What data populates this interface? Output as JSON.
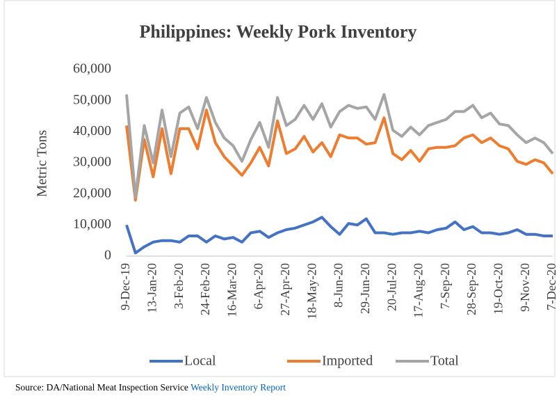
{
  "chart_data": {
    "type": "line",
    "title": "Philippines: Weekly Pork Inventory",
    "y_label": "Metric Tons",
    "categories": [
      "9-Dec-19",
      null,
      null,
      "13-Jan-20",
      null,
      null,
      "3-Feb-20",
      null,
      null,
      "24-Feb-20",
      null,
      null,
      "16-Mar-20",
      null,
      null,
      "6-Apr-20",
      null,
      null,
      "27-Apr-20",
      null,
      null,
      "18-May-20",
      null,
      null,
      "8-Jun-20",
      null,
      null,
      "29-Jun-20",
      null,
      null,
      "20-Jul-20",
      null,
      null,
      "17-Aug-20",
      null,
      null,
      "7-Sep-20",
      null,
      null,
      "28-Sep-20",
      null,
      null,
      "19-Oct-20",
      null,
      null,
      "9-Nov-20",
      null,
      null,
      "7-Dec-20"
    ],
    "series": [
      {
        "name": "Local",
        "color": "#4472c4",
        "values": [
          10000,
          1000,
          3000,
          4500,
          5000,
          5000,
          4500,
          6500,
          6500,
          4500,
          6500,
          5500,
          6000,
          4500,
          7500,
          8000,
          6000,
          7500,
          8500,
          9000,
          10000,
          11000,
          12500,
          9500,
          7000,
          10500,
          10000,
          12000,
          7500,
          7500,
          7000,
          7500,
          7500,
          8000,
          7500,
          8500,
          9000,
          11000,
          8500,
          9500,
          7500,
          7500,
          7000,
          7500,
          8500,
          7000,
          7000,
          6500,
          6500
        ]
      },
      {
        "name": "Imported",
        "color": "#ed7d31",
        "values": [
          42000,
          18000,
          37500,
          25500,
          41000,
          26500,
          41000,
          41000,
          34500,
          47000,
          36500,
          32000,
          29000,
          26000,
          30000,
          35000,
          29000,
          43500,
          33000,
          34500,
          38500,
          33500,
          36500,
          32000,
          39000,
          38000,
          38000,
          36000,
          36500,
          44500,
          33000,
          31000,
          34000,
          30500,
          34500,
          35000,
          35000,
          35500,
          38000,
          39000,
          36500,
          38000,
          35500,
          34500,
          30500,
          29500,
          31000,
          30000,
          26500
        ]
      },
      {
        "name": "Total",
        "color": "#a5a5a5",
        "values": [
          52000,
          19000,
          42000,
          30000,
          47000,
          32000,
          46000,
          48000,
          41000,
          51000,
          43000,
          38000,
          35500,
          30500,
          37500,
          43000,
          35000,
          51000,
          42000,
          44000,
          48500,
          44000,
          49000,
          41500,
          46500,
          48500,
          47500,
          48000,
          44000,
          52000,
          40500,
          38500,
          41500,
          39000,
          42000,
          43000,
          44000,
          46500,
          46500,
          48500,
          44500,
          46000,
          42500,
          42000,
          39000,
          36500,
          38000,
          36500,
          33000
        ]
      }
    ],
    "ylim": [
      0,
      60000
    ],
    "yticks": [
      0,
      {
        "value": 10000,
        "label": "10,000"
      },
      {
        "value": 20000,
        "label": "20,000"
      },
      {
        "value": 30000,
        "label": "30,000"
      },
      {
        "value": 40000,
        "label": "40,000"
      },
      {
        "value": 50000,
        "label": "50,000"
      },
      {
        "value": 60000,
        "label": "60,000"
      }
    ],
    "grid": false,
    "legend": "bottom",
    "source": {
      "text": "Source:  DA/National Meat Inspection Service",
      "link": "Weekly Inventory Report"
    }
  }
}
